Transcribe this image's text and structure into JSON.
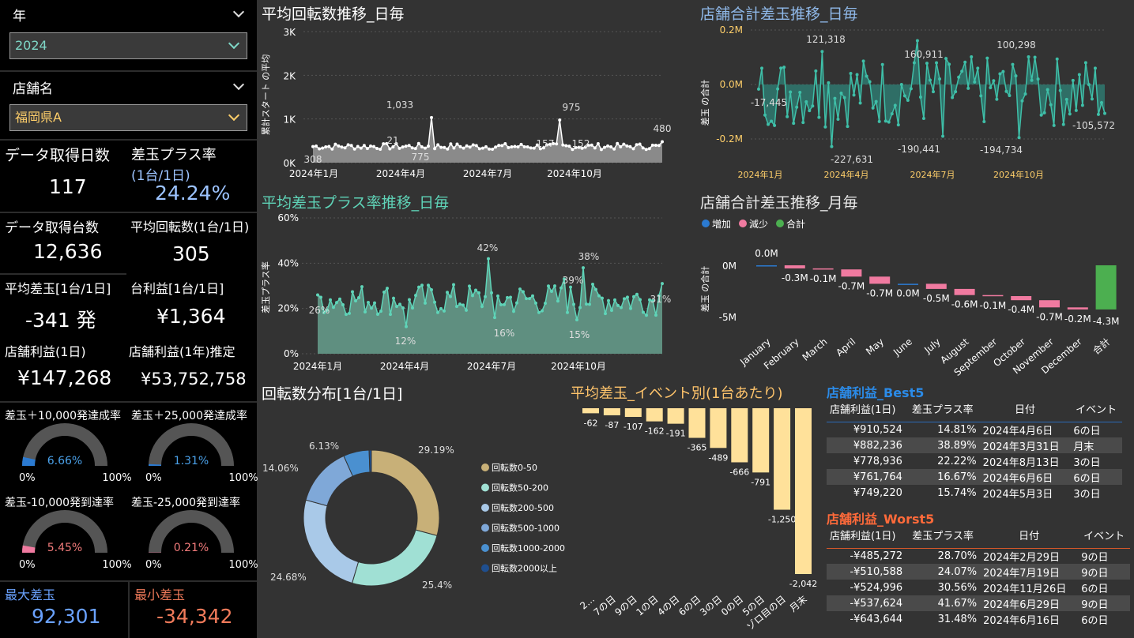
{
  "slicers": {
    "year_label": "年",
    "year_value": "2024",
    "store_label": "店舗名",
    "store_value": "福岡県A"
  },
  "kpis": {
    "days_title": "データ取得日数",
    "days_value": "117",
    "plus_title": "差玉プラス率",
    "plus_sub": "(1台/1日)",
    "plus_value": "24.24%",
    "machines_title": "データ取得台数",
    "machines_value": "12,636",
    "avg_spin_title": "平均回転数(1台/1日)",
    "avg_spin_value": "305",
    "avg_diff_title": "平均差玉[1台/1日]",
    "avg_diff_value": "-341 発",
    "profit_title": "台利益[1台/1日]",
    "profit_value": "¥1,364",
    "store_day_title": "店舗利益(1日)",
    "store_day_value": "¥147,268",
    "store_year_title": "店舗利益(1年)推定",
    "store_year_value": "¥53,752,758",
    "max_title": "最大差玉",
    "max_value": "92,301",
    "min_title": "最小差玉",
    "min_value": "-34,342"
  },
  "gauges": [
    {
      "title": "差玉＋10,000発達成率",
      "value": "6.66%",
      "fraction": 0.0666,
      "color": "#2b7ad1",
      "text_color": "#4aa0e8",
      "min": "0%",
      "max": "100%"
    },
    {
      "title": "差玉＋25,000発達成率",
      "value": "1.31%",
      "fraction": 0.0131,
      "color": "#2b7ad1",
      "text_color": "#4aa0e8",
      "min": "0%",
      "max": "100%"
    },
    {
      "title": "差玉-10,000発到達率",
      "value": "5.45%",
      "fraction": 0.0545,
      "color": "#f07aa0",
      "text_color": "#f07a7a",
      "min": "0%",
      "max": "100%"
    },
    {
      "title": "差玉-25,000発到達率",
      "value": "0.21%",
      "fraction": 0.0021,
      "color": "#f07aa0",
      "text_color": "#f07a7a",
      "min": "0%",
      "max": "100%"
    }
  ],
  "charts": {
    "spin_title": "平均回転数推移_日毎",
    "spin_ylabel": "累計スタート の平均",
    "spin_yticks": [
      "3K",
      "2K",
      "1K",
      "0K"
    ],
    "spin_xticks": [
      "2024年1月",
      "2024年4月",
      "2024年7月",
      "2024年10月"
    ],
    "spin_labels": [
      "308",
      "1,033",
      "21",
      "775",
      "975",
      "157",
      "152",
      "480"
    ],
    "diff_title": "店舗合計差玉推移_日毎",
    "diff_ylabel": "差玉 の合計",
    "diff_yticks": [
      "0.2M",
      "0.0M",
      "-0.2M"
    ],
    "diff_xticks": [
      "2024年1月",
      "2024年4月",
      "2024年7月",
      "2024年10月"
    ],
    "diff_labels": [
      "121,318",
      "-17,445",
      "160,911",
      "100,298",
      "-227,631",
      "-190,441",
      "-194,734",
      "-105,572"
    ],
    "rate_title": "平均差玉プラス率推移_日毎",
    "rate_ylabel": "差玉プラス率",
    "rate_yticks": [
      "60%",
      "40%",
      "20%",
      "0%"
    ],
    "rate_xticks": [
      "2024年1月",
      "2024年4月",
      "2024年7月",
      "2024年10月"
    ],
    "rate_labels": [
      "42%",
      "38%",
      "39%",
      "26%",
      "31%",
      "12%",
      "16%",
      "15%"
    ],
    "monthly_title": "店舗合計差玉推移_月毎",
    "monthly_ylabel": "差玉 の合計",
    "monthly_legend": [
      "増加",
      "減少",
      "合計"
    ],
    "monthly_yticks": [
      "0M",
      "-5M"
    ],
    "donut_title": "回転数分布[1台/1日]",
    "event_title": "平均差玉_イベント別(1台あたり)"
  },
  "chart_data": [
    {
      "type": "waterfall",
      "title": "店舗合計差玉推移_月毎",
      "categories": [
        "January",
        "February",
        "March",
        "April",
        "May",
        "June",
        "July",
        "August",
        "September",
        "October",
        "November",
        "December",
        "合計"
      ],
      "values": [
        0.0,
        -0.3,
        -0.1,
        -0.7,
        -0.7,
        0.0,
        -0.5,
        -0.6,
        -0.1,
        -0.4,
        -0.7,
        -0.2,
        -4.3
      ],
      "labels": [
        "0.0M",
        "-0.3M",
        "-0.1M",
        "-0.7M",
        "-0.7M",
        "0.0M",
        "-0.5M",
        "-0.6M",
        "-0.1M",
        "-0.4M",
        "-0.7M",
        "-0.2M",
        "-4.3M"
      ],
      "colors": {
        "increase": "#2b7ad1",
        "decrease": "#f07aa0",
        "total": "#4caf50"
      }
    },
    {
      "type": "pie",
      "title": "回転数分布[1台/1日]",
      "categories": [
        "回転数0-50",
        "回転数50-200",
        "回転数200-500",
        "回転数500-1000",
        "回転数1000-2000",
        "回転数2000以上"
      ],
      "values": [
        29.19,
        25.4,
        24.68,
        14.06,
        6.13,
        0.54
      ],
      "labels": [
        "29.19%",
        "25.4%",
        "24.68%",
        "14.06%",
        "6.13%",
        ""
      ],
      "colors": [
        "#c8b078",
        "#a0e0d4",
        "#a9c9e8",
        "#7fa8d8",
        "#4a90d0",
        "#1f4f8f"
      ]
    },
    {
      "type": "bar",
      "title": "平均差玉_イベント別(1台あたり)",
      "categories": [
        "2...",
        "7の日",
        "9の日",
        "1の日",
        "4の日",
        "6の日",
        "3の日",
        "0の日",
        "5の日",
        "ゾロ目の日",
        "月末"
      ],
      "values": [
        -62,
        -87,
        -107,
        -162,
        -191,
        -365,
        -489,
        -666,
        -791,
        -1250,
        -2042
      ],
      "labels": [
        "-62",
        "-87",
        "-107",
        "-162",
        "-191",
        "-365",
        "-489",
        "-666",
        "-791",
        "-1,250",
        "-2,042"
      ],
      "color": "#ffe19a"
    }
  ],
  "best": {
    "title": "店舗利益_Best5",
    "headers": [
      "店舗利益(1日)",
      "差玉プラス率",
      "日付",
      "イベント"
    ],
    "rows": [
      [
        "¥910,524",
        "14.81%",
        "2024年4月6日",
        "6の日"
      ],
      [
        "¥882,236",
        "38.89%",
        "2024年3月31日",
        "月末"
      ],
      [
        "¥778,936",
        "22.22%",
        "2024年8月13日",
        "3の日"
      ],
      [
        "¥761,764",
        "16.67%",
        "2024年6月6日",
        "6の日"
      ],
      [
        "¥749,220",
        "15.74%",
        "2024年5月3日",
        "3の日"
      ]
    ]
  },
  "worst": {
    "title": "店舗利益_Worst5",
    "headers": [
      "店舗利益(1日)",
      "差玉プラス率",
      "日付",
      "イベント"
    ],
    "rows": [
      [
        "-¥485,272",
        "28.70%",
        "2024年2月29日",
        "9の日"
      ],
      [
        "-¥510,588",
        "24.07%",
        "2024年7月19日",
        "9の日"
      ],
      [
        "-¥524,996",
        "30.56%",
        "2024年11月26日",
        "6の日"
      ],
      [
        "-¥537,624",
        "41.67%",
        "2024年6月29日",
        "9の日"
      ],
      [
        "-¥643,644",
        "31.48%",
        "2024年6月16日",
        "6の日"
      ]
    ]
  }
}
